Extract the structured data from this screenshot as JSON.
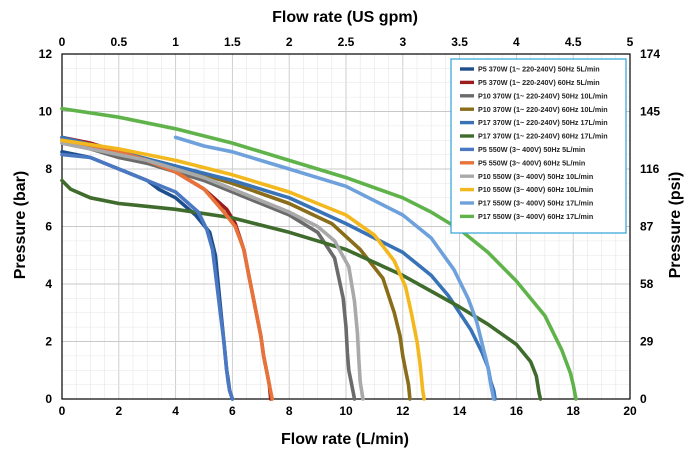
{
  "chart_data": {
    "type": "line",
    "title": "",
    "xlabel": "Flow rate (L/min)",
    "x2label": "Flow rate (US gpm)",
    "ylabel": "Pressure (bar)",
    "y2label": "Pressure (psi)",
    "xlim": [
      0,
      20
    ],
    "ylim": [
      0,
      12
    ],
    "x2lim": [
      0,
      5
    ],
    "y2lim": [
      0,
      174
    ],
    "grid": true,
    "legend_position": "top-right",
    "xticks": [
      "0",
      "2",
      "4",
      "6",
      "8",
      "10",
      "12",
      "14",
      "16",
      "18",
      "20"
    ],
    "yticks": [
      "0",
      "2",
      "4",
      "6",
      "8",
      "10",
      "12"
    ],
    "x2ticks": [
      "0",
      "0.5",
      "1",
      "1.5",
      "2",
      "2.5",
      "3",
      "3.5",
      "4",
      "4.5",
      "5"
    ],
    "y2ticks": [
      "0",
      "29",
      "58",
      "87",
      "116",
      "145",
      "174"
    ],
    "series": [
      {
        "name": "P5 370W (1~ 220-240V) 50Hz 5L/min",
        "color": "#1f4e8c",
        "x": [
          0,
          1,
          2,
          3,
          3.4,
          4,
          4.7,
          5.2,
          5.4,
          5.5,
          5.6,
          5.7,
          5.75,
          5.8,
          5.85,
          5.9,
          6.0
        ],
        "y": [
          8.6,
          8.4,
          8.0,
          7.6,
          7.3,
          7.0,
          6.4,
          5.8,
          5.0,
          4.0,
          3.0,
          2.0,
          1.5,
          1.0,
          0.7,
          0.3,
          0
        ]
      },
      {
        "name": "P5 370W (1~ 220-240V) 60Hz 5L/min",
        "color": "#9b1c1c",
        "x": [
          0,
          1,
          2,
          3,
          4,
          5,
          5.8,
          6.1,
          6.4,
          6.6,
          6.8,
          7.0,
          7.1,
          7.2,
          7.3,
          7.35
        ],
        "y": [
          9.1,
          8.9,
          8.6,
          8.3,
          7.9,
          7.3,
          6.6,
          6.1,
          5.2,
          4.2,
          3.2,
          2.2,
          1.5,
          1.0,
          0.5,
          0
        ]
      },
      {
        "name": "P10 370W (1~ 220-240V) 50Hz 10L/min",
        "color": "#6b6b6b",
        "x": [
          0,
          1,
          2,
          3,
          4,
          5,
          6,
          7,
          8,
          9,
          9.6,
          9.9,
          10.0,
          10.05,
          10.1,
          10.2,
          10.3
        ],
        "y": [
          8.9,
          8.7,
          8.4,
          8.2,
          7.9,
          7.6,
          7.2,
          6.8,
          6.4,
          5.8,
          4.9,
          3.5,
          2.5,
          1.6,
          1.0,
          0.5,
          0
        ]
      },
      {
        "name": "P10 370W (1~ 220-240V) 60Hz 10L/min",
        "color": "#8a6d1a",
        "x": [
          0,
          2,
          4,
          6,
          8,
          9.5,
          10.5,
          11.3,
          11.7,
          11.9,
          12.0,
          12.1,
          12.2,
          12.25
        ],
        "y": [
          9.0,
          8.6,
          8.1,
          7.5,
          6.8,
          6.1,
          5.2,
          4.2,
          3.0,
          2.2,
          1.5,
          1.0,
          0.5,
          0
        ]
      },
      {
        "name": "P17 370W (1~ 220-240V) 50Hz 17L/min",
        "color": "#3973b7",
        "x": [
          0,
          2,
          4,
          6,
          8,
          10,
          12,
          13,
          13.6,
          14.0,
          14.4,
          14.8,
          15.0,
          15.1,
          15.2,
          15.25
        ],
        "y": [
          9.1,
          8.6,
          8.1,
          7.6,
          7.0,
          6.1,
          5.1,
          4.3,
          3.6,
          3.0,
          2.4,
          1.6,
          1.1,
          0.6,
          0.3,
          0
        ]
      },
      {
        "name": "P17 370W (1~ 220-240V) 60Hz 17L/min",
        "color": "#3f6b2d",
        "x": [
          0,
          0.3,
          1,
          2,
          4,
          6,
          8,
          10,
          12,
          14,
          15,
          16,
          16.5,
          16.7,
          16.75,
          16.8,
          16.85
        ],
        "y": [
          7.6,
          7.3,
          7.0,
          6.8,
          6.6,
          6.3,
          5.8,
          5.2,
          4.3,
          3.2,
          2.6,
          1.9,
          1.3,
          0.8,
          0.5,
          0.2,
          0
        ]
      },
      {
        "name": "P5 550W (3~ 400V) 50Hz 5L/min",
        "color": "#4a78c2",
        "x": [
          0,
          1,
          2,
          3,
          4,
          4.8,
          5.1,
          5.3,
          5.4,
          5.5,
          5.6,
          5.7,
          5.75,
          5.8,
          5.85,
          5.9,
          6.0
        ],
        "y": [
          8.5,
          8.4,
          8.0,
          7.6,
          7.2,
          6.5,
          5.9,
          5.2,
          4.4,
          3.6,
          2.8,
          2.0,
          1.5,
          1.0,
          0.6,
          0.3,
          0
        ]
      },
      {
        "name": "P5 550W (3~ 400V) 60Hz 5L/min",
        "color": "#e8733a",
        "x": [
          0,
          1,
          2,
          3,
          4,
          5,
          5.7,
          6.1,
          6.4,
          6.6,
          6.8,
          7.0,
          7.1,
          7.2,
          7.3,
          7.4
        ],
        "y": [
          9.0,
          8.8,
          8.6,
          8.3,
          7.9,
          7.3,
          6.5,
          6.0,
          5.2,
          4.2,
          3.2,
          2.2,
          1.5,
          1.0,
          0.5,
          0
        ]
      },
      {
        "name": "P10 550W (3~ 400V) 50Hz 10L/min",
        "color": "#a9a9a9",
        "x": [
          0,
          1,
          2,
          3,
          4,
          5,
          6,
          7,
          8,
          9,
          9.6,
          10.1,
          10.3,
          10.4,
          10.45,
          10.5,
          10.6
        ],
        "y": [
          8.9,
          8.7,
          8.5,
          8.3,
          8.0,
          7.7,
          7.3,
          6.9,
          6.5,
          6.0,
          5.5,
          4.6,
          3.4,
          2.3,
          1.4,
          0.6,
          0
        ]
      },
      {
        "name": "P10 550W (3~ 400V) 60Hz 10L/min",
        "color": "#f2b81e",
        "x": [
          0,
          2,
          4,
          6,
          8,
          10,
          11,
          11.7,
          12.1,
          12.3,
          12.5,
          12.6,
          12.65,
          12.7,
          12.75
        ],
        "y": [
          9.0,
          8.7,
          8.3,
          7.8,
          7.2,
          6.4,
          5.7,
          4.8,
          3.9,
          3.0,
          2.0,
          1.3,
          0.8,
          0.3,
          0
        ]
      },
      {
        "name": "P17 550W (3~ 400V) 50Hz 17L/min",
        "color": "#6ea1db",
        "x": [
          4,
          5,
          6,
          8,
          10,
          12,
          13,
          13.8,
          14.3,
          14.6,
          14.8,
          15.0,
          15.1,
          15.2
        ],
        "y": [
          9.1,
          8.8,
          8.6,
          8.0,
          7.4,
          6.4,
          5.6,
          4.5,
          3.5,
          2.7,
          1.9,
          1.1,
          0.5,
          0
        ]
      },
      {
        "name": "P17 550W (3~ 400V) 60Hz 17L/min",
        "color": "#5fb34a",
        "x": [
          0,
          2,
          4,
          6,
          8,
          10,
          12,
          13,
          14,
          15,
          16,
          17,
          17.6,
          17.9,
          18.0,
          18.1
        ],
        "y": [
          10.1,
          9.8,
          9.4,
          8.9,
          8.3,
          7.7,
          7.0,
          6.5,
          5.9,
          5.1,
          4.1,
          2.9,
          1.7,
          0.9,
          0.5,
          0
        ]
      }
    ]
  }
}
